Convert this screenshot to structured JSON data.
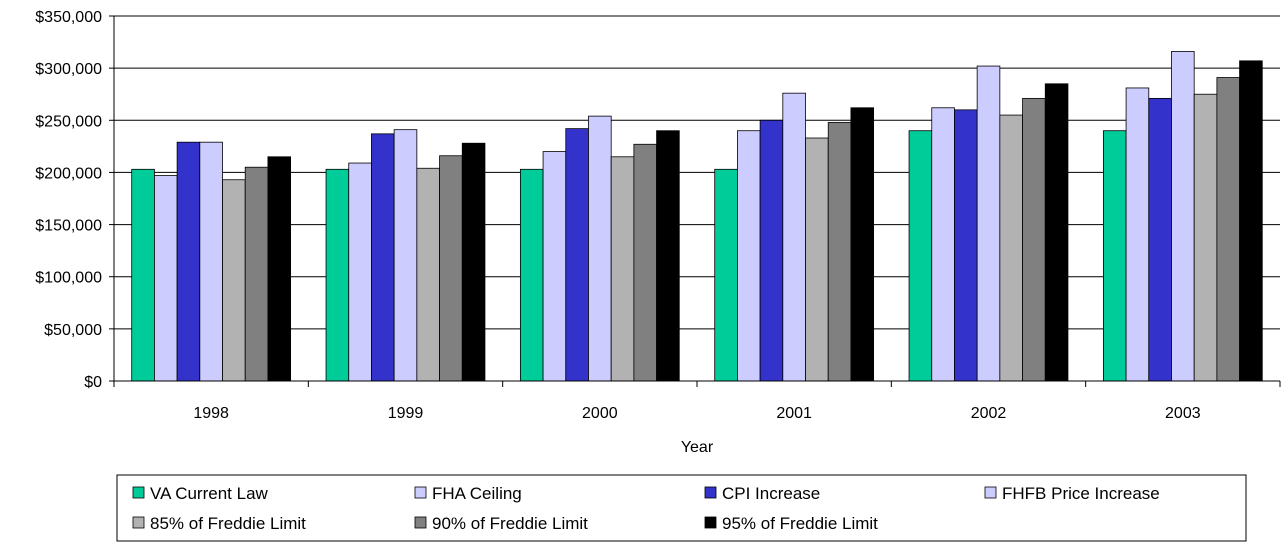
{
  "chart_data": {
    "type": "bar",
    "title": "",
    "xlabel": "Year",
    "ylabel": "",
    "ylim": [
      0,
      350000
    ],
    "yticks": [
      0,
      50000,
      100000,
      150000,
      200000,
      250000,
      300000,
      350000
    ],
    "ytick_labels": [
      "$0",
      "$50,000",
      "$100,000",
      "$150,000",
      "$200,000",
      "$250,000",
      "$300,000",
      "$350,000"
    ],
    "categories": [
      "1998",
      "1999",
      "2000",
      "2001",
      "2002",
      "2003"
    ],
    "grid": "horizontal",
    "legend_position": "bottom",
    "series": [
      {
        "name": "VA Current Law",
        "color": "#00CC99",
        "values": [
          203000,
          203000,
          203000,
          203000,
          240000,
          240000
        ]
      },
      {
        "name": "FHA Ceiling",
        "color": "#CCCCFF",
        "values": [
          197000,
          209000,
          220000,
          240000,
          262000,
          281000
        ]
      },
      {
        "name": "CPI Increase",
        "color": "#3333CC",
        "values": [
          229000,
          237000,
          242000,
          250000,
          260000,
          271000
        ]
      },
      {
        "name": "FHFB Price Increase",
        "color": "#CCCCFF",
        "values": [
          229000,
          241000,
          254000,
          276000,
          302000,
          316000
        ]
      },
      {
        "name": "85% of Freddie Limit",
        "color": "#B2B2B2",
        "values": [
          193000,
          204000,
          215000,
          233000,
          255000,
          275000
        ]
      },
      {
        "name": "90% of Freddie Limit",
        "color": "#808080",
        "values": [
          205000,
          216000,
          227000,
          248000,
          271000,
          291000
        ]
      },
      {
        "name": "95% of Freddie Limit",
        "color": "#000000",
        "values": [
          215000,
          228000,
          240000,
          262000,
          285000,
          307000
        ]
      }
    ]
  }
}
